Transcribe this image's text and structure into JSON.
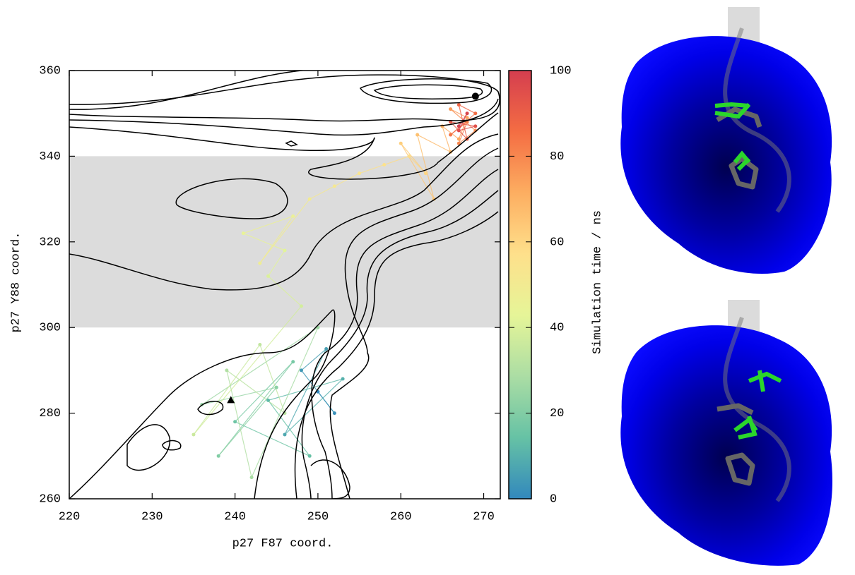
{
  "chart_data": {
    "type": "scatter",
    "xlabel": "p27 F87 coord.",
    "ylabel": "p27 Y88 coord.",
    "xlim": [
      220,
      272
    ],
    "ylim": [
      260,
      360
    ],
    "xticks": [
      220,
      230,
      240,
      250,
      260,
      270
    ],
    "yticks": [
      260,
      280,
      300,
      320,
      340,
      360
    ],
    "shaded_band": [
      300,
      340
    ],
    "colorbar": {
      "label": "Simulation time / ns",
      "clim": [
        0,
        100
      ],
      "ticks": [
        0,
        20,
        40,
        60,
        80,
        100
      ],
      "colormap": [
        "#3288bd",
        "#66c2a5",
        "#abdda4",
        "#e6f598",
        "#fee08b",
        "#fdae61",
        "#f46d43",
        "#d53e4f"
      ]
    },
    "series": [
      {
        "x": [
          250,
          252,
          248,
          251,
          246,
          253,
          244,
          249,
          240,
          247,
          238,
          245,
          236,
          250,
          242,
          239,
          246,
          243,
          235,
          248,
          244,
          246,
          241,
          247,
          243,
          249,
          252,
          255,
          258,
          261,
          263,
          260,
          264,
          262,
          266,
          265,
          267,
          268,
          266,
          269,
          267,
          268,
          266,
          269,
          267,
          268,
          266,
          269,
          267,
          268,
          267
        ],
        "values": [
          285,
          280,
          290,
          295,
          275,
          288,
          283,
          270,
          278,
          292,
          270,
          286,
          282,
          300,
          265,
          290,
          280,
          296,
          275,
          305,
          312,
          318,
          322,
          326,
          315,
          330,
          333,
          336,
          338,
          340,
          336,
          343,
          330,
          345,
          341,
          347,
          344,
          349,
          351,
          346,
          343,
          348,
          345,
          350,
          352,
          344,
          348,
          347,
          346,
          350,
          347
        ],
        "time": [
          0,
          2,
          4,
          6,
          8,
          10,
          12,
          14,
          16,
          18,
          20,
          22,
          24,
          26,
          28,
          30,
          32,
          34,
          36,
          38,
          40,
          42,
          44,
          46,
          48,
          50,
          52,
          54,
          56,
          58,
          60,
          62,
          64,
          66,
          68,
          70,
          72,
          74,
          76,
          78,
          80,
          82,
          84,
          86,
          88,
          90,
          92,
          94,
          96,
          98,
          100
        ]
      }
    ],
    "markers": [
      {
        "shape": "circle",
        "x": 269,
        "y": 354
      },
      {
        "shape": "triangle",
        "x": 239.5,
        "y": 283
      }
    ]
  }
}
